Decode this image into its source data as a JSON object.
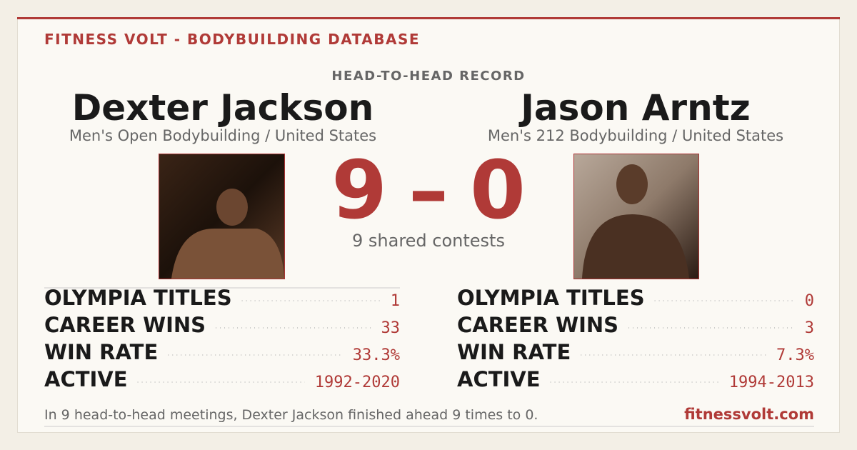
{
  "header": {
    "brand": "FITNESS VOLT - BODYBUILDING DATABASE",
    "section": "HEAD-TO-HEAD RECORD"
  },
  "athletes": [
    {
      "name": "Dexter Jackson",
      "division": "Men's Open Bodybuilding / United States",
      "stats": [
        {
          "label": "OLYMPIA TITLES",
          "value": "1"
        },
        {
          "label": "CAREER WINS",
          "value": "33"
        },
        {
          "label": "WIN RATE",
          "value": "33.3%"
        },
        {
          "label": "ACTIVE",
          "value": "1992-2020"
        }
      ]
    },
    {
      "name": "Jason Arntz",
      "division": "Men's 212 Bodybuilding / United States",
      "stats": [
        {
          "label": "OLYMPIA TITLES",
          "value": "0"
        },
        {
          "label": "CAREER WINS",
          "value": "3"
        },
        {
          "label": "WIN RATE",
          "value": "7.3%"
        },
        {
          "label": "ACTIVE",
          "value": "1994-2013"
        }
      ]
    }
  ],
  "score": {
    "left": "9",
    "separator": "–",
    "right": "0",
    "caption": "9 shared contests"
  },
  "footer": {
    "summary": "In 9 head-to-head meetings, Dexter Jackson finished ahead 9 times to 0.",
    "site": "fitnessvolt.com"
  }
}
